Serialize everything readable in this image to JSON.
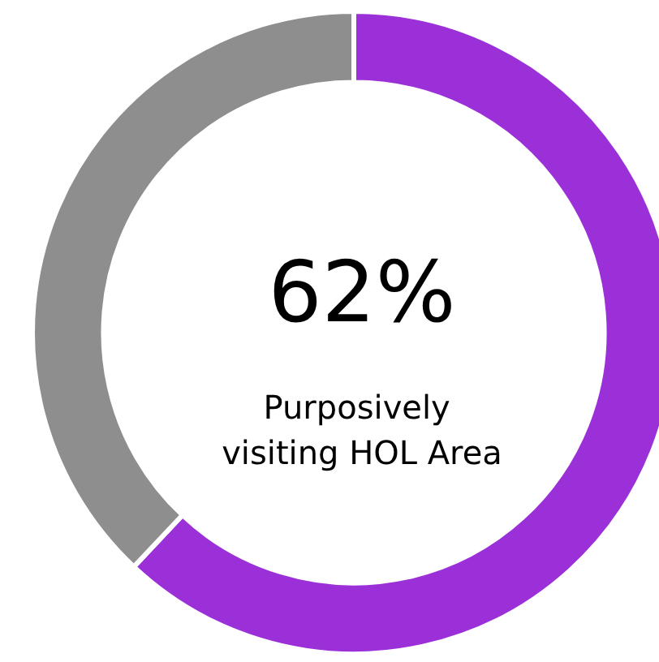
{
  "chart_data": {
    "type": "donut",
    "categories": [
      "Purposively visiting HOL Area",
      null
    ],
    "values": [
      62,
      38
    ],
    "colors": [
      "#9b2fd8",
      "#8e8e8e"
    ],
    "value_labels": [
      "62%",
      null
    ]
  }
}
